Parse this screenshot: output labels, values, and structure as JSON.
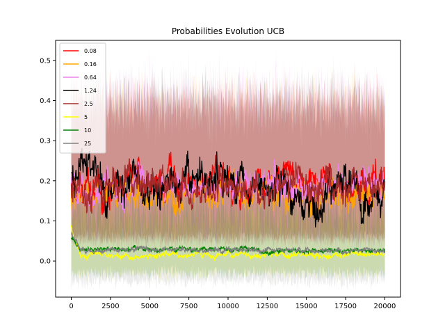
{
  "chart_data": {
    "type": "line",
    "title": "Probabilities Evolution UCB",
    "xlabel": "",
    "ylabel": "",
    "xlim": [
      -1000,
      21000
    ],
    "ylim": [
      -0.09,
      0.55
    ],
    "x_ticks": [
      0,
      2500,
      5000,
      7500,
      10000,
      12500,
      15000,
      17500,
      20000
    ],
    "x_tick_labels": [
      "0",
      "2500",
      "5000",
      "7500",
      "10000",
      "12500",
      "15000",
      "17500",
      "20000"
    ],
    "y_ticks": [
      0.0,
      0.1,
      0.2,
      0.3,
      0.4,
      0.5
    ],
    "y_tick_labels": [
      "0.0",
      "0.1",
      "0.2",
      "0.3",
      "0.4",
      "0.5"
    ],
    "grid": false,
    "legend_position": "top-left",
    "band_opacity": 0.15,
    "series": [
      {
        "name": "0.08",
        "color": "#ff0000",
        "mean": 0.175,
        "spread": 0.028,
        "band_low": 0.06,
        "band_high": 0.38,
        "jump_at": 2200,
        "jump_to": 0.195
      },
      {
        "name": "0.16",
        "color": "#ffa500",
        "mean": 0.17,
        "spread": 0.025,
        "band_low": 0.07,
        "band_high": 0.4,
        "jump_at": 14500,
        "jump_to": 0.16
      },
      {
        "name": "0.64",
        "color": "#ee82ee",
        "mean": 0.19,
        "spread": 0.025,
        "band_low": 0.05,
        "band_high": 0.42,
        "jump_at": 17000,
        "jump_to": 0.21
      },
      {
        "name": "1.24",
        "color": "#000000",
        "mean": 0.2,
        "spread": 0.03,
        "band_low": 0.06,
        "band_high": 0.4,
        "jump_at": 14000,
        "jump_to": 0.165
      },
      {
        "name": "2.5",
        "color": "#a52a2a",
        "mean": 0.185,
        "spread": 0.028,
        "band_low": 0.05,
        "band_high": 0.4,
        "jump_at": 10000,
        "jump_to": 0.19
      },
      {
        "name": "5",
        "color": "#ffff00",
        "mean": 0.015,
        "spread": 0.005,
        "band_low": -0.03,
        "band_high": 0.1,
        "start": 0.08,
        "jump_at": 6000,
        "jump_to": 0.017
      },
      {
        "name": "10",
        "color": "#008000",
        "mean": 0.03,
        "spread": 0.004,
        "band_low": -0.03,
        "band_high": 0.12,
        "start": 0.06,
        "jump_at": 12000,
        "jump_to": 0.025
      },
      {
        "name": "25",
        "color": "#808080",
        "mean": 0.028,
        "spread": 0.004,
        "band_low": -0.05,
        "band_high": 0.11,
        "start": 0.07,
        "jump_at": 12000,
        "jump_to": 0.027
      }
    ]
  }
}
